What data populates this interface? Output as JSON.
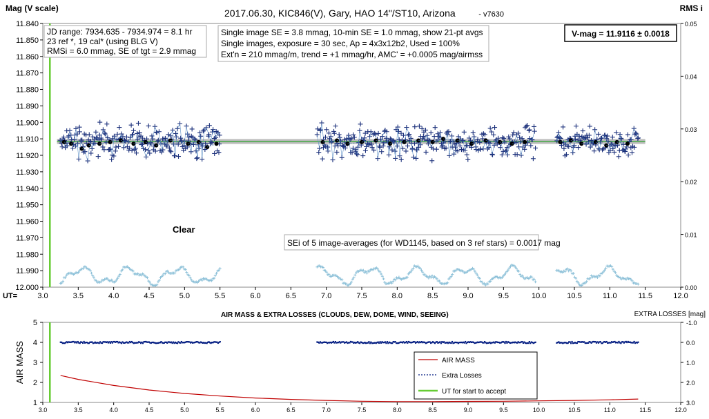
{
  "chart_data": [
    {
      "type": "scatter",
      "title": "2017.06.30,  KIC846(V),  Gary,  HAO  14\"/ST10,  Arizona",
      "version": "- v7630",
      "ylabel": "Mag (V scale)",
      "y2label": "RMS i",
      "xlabel": "UT=",
      "xlim": [
        3.0,
        12.0
      ],
      "ylim": [
        11.84,
        12.0
      ],
      "y_inverted": true,
      "y2lim": [
        0.0,
        0.05
      ],
      "x_ticks": [
        "3.0",
        "3.5",
        "4.0",
        "4.5",
        "5.0",
        "5.5",
        "6.0",
        "6.5",
        "7.0",
        "7.5",
        "8.0",
        "8.5",
        "9.0",
        "9.5",
        "10.0",
        "10.5",
        "11.0",
        "11.5",
        "12.0"
      ],
      "y_ticks": [
        "11.840",
        "11.850",
        "11.860",
        "11.870",
        "11.880",
        "11.890",
        "11.900",
        "11.910",
        "11.920",
        "11.930",
        "11.940",
        "11.950",
        "11.960",
        "11.970",
        "11.980",
        "11.990",
        "12.000"
      ],
      "y2_ticks": [
        "0.05",
        "0.04",
        "0.03",
        "0.02",
        "0.01",
        "0.00"
      ],
      "segments": [
        [
          3.25,
          5.5
        ],
        [
          6.87,
          9.95
        ],
        [
          10.25,
          11.4
        ]
      ],
      "vmag_level": 11.9116,
      "start_accept_ut": 3.1,
      "avg_points": [
        [
          3.3,
          11.912
        ],
        [
          3.4,
          11.913
        ],
        [
          3.55,
          11.916
        ],
        [
          3.65,
          11.914
        ],
        [
          3.8,
          11.913
        ],
        [
          3.95,
          11.912
        ],
        [
          4.1,
          11.911
        ],
        [
          4.28,
          11.913
        ],
        [
          4.45,
          11.912
        ],
        [
          4.6,
          11.914
        ],
        [
          4.8,
          11.911
        ],
        [
          5.05,
          11.913
        ],
        [
          5.2,
          11.912
        ],
        [
          5.32,
          11.915
        ],
        [
          5.45,
          11.913
        ],
        [
          6.95,
          11.912
        ],
        [
          7.15,
          11.911
        ],
        [
          7.3,
          11.913
        ],
        [
          7.5,
          11.912
        ],
        [
          7.7,
          11.911
        ],
        [
          7.9,
          11.913
        ],
        [
          8.1,
          11.912
        ],
        [
          8.3,
          11.911
        ],
        [
          8.5,
          11.912
        ],
        [
          8.65,
          11.91
        ],
        [
          8.85,
          11.911
        ],
        [
          9.05,
          11.913
        ],
        [
          9.25,
          11.911
        ],
        [
          9.45,
          11.912
        ],
        [
          9.62,
          11.913
        ],
        [
          9.8,
          11.912
        ],
        [
          10.3,
          11.912
        ],
        [
          10.45,
          11.911
        ],
        [
          10.6,
          11.913
        ],
        [
          10.8,
          11.912
        ],
        [
          10.95,
          11.914
        ],
        [
          11.1,
          11.912
        ],
        [
          11.25,
          11.913
        ]
      ],
      "annotations": {
        "box1": [
          "JD range: 7934.635 - 7934.974 = 8.1 hr",
          "23 ref *, 19 cal* (using BLG V)",
          "RMSi = 6.0 mmag, SE of tgt = 2.9 mmag"
        ],
        "box2": [
          "Single image SE = 3.8 mmag, 10-min SE = 1.0 mmag, show 21-pt avgs",
          "Single images, exposure = 30 sec, Ap = 4x3x12b2, Used = 100%",
          "Ext'n = 210 mmag/m, trend = +1 mmag/hr, AMC' = +0.0005 mag/airmss"
        ],
        "vmag": "V-mag = 11.9116 ± 0.0018",
        "clear": "Clear",
        "sei": "SEi of 5 image-averages (for WD1145, based on 3 ref stars) = 0.0017 mag"
      }
    },
    {
      "type": "line",
      "title": "AIR MASS & EXTRA LOSSES (CLOUDS, DEW, DOME, WIND, SEEING)",
      "ylabel": "AIR MASS",
      "y2label": "EXTRA LOSSES [mag]",
      "xlim": [
        3.0,
        12.0
      ],
      "ylim": [
        1,
        5
      ],
      "y2lim": [
        -1.0,
        3.0
      ],
      "x_ticks": [
        "3.0",
        "3.5",
        "4.0",
        "4.5",
        "5.0",
        "5.5",
        "6.0",
        "6.5",
        "7.0",
        "7.5",
        "8.0",
        "8.5",
        "9.0",
        "9.5",
        "10.0",
        "10.5",
        "11.0",
        "11.5",
        "12.0"
      ],
      "y_ticks": [
        "5",
        "4",
        "3",
        "2",
        "1"
      ],
      "y2_ticks": [
        "-1.0",
        "0.0",
        "1.0",
        "2.0",
        "3.0"
      ],
      "airmass": {
        "x": [
          3.25,
          3.5,
          4.0,
          4.5,
          5.0,
          5.5,
          6.0,
          6.5,
          7.0,
          7.5,
          8.0,
          8.5,
          9.0,
          9.5,
          10.0,
          10.5,
          11.0,
          11.4
        ],
        "y": [
          2.35,
          2.15,
          1.85,
          1.62,
          1.45,
          1.32,
          1.22,
          1.15,
          1.1,
          1.06,
          1.04,
          1.04,
          1.05,
          1.06,
          1.08,
          1.1,
          1.13,
          1.17
        ]
      },
      "legend": [
        "AIR MASS",
        "Extra Losses",
        "UT for start to accept"
      ],
      "legend_colors": [
        "#c00000",
        "#001a80",
        "#66cc33"
      ]
    }
  ]
}
